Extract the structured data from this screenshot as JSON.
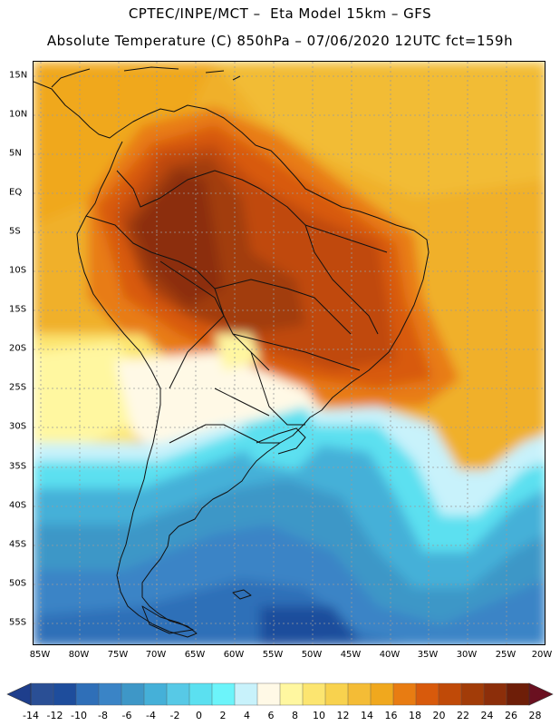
{
  "header": {
    "line1": "CPTEC/INPE/MCT –  Eta Model 15km – GFS",
    "line2": "Absolute Temperature (C) 850hPa – 07/06/2020 12UTC fct=159h"
  },
  "map": {
    "lat_labels": [
      "15N",
      "10N",
      "5N",
      "EQ",
      "5S",
      "10S",
      "15S",
      "20S",
      "25S",
      "30S",
      "35S",
      "40S",
      "45S",
      "50S",
      "55S"
    ],
    "lon_labels": [
      "85W",
      "80W",
      "75W",
      "70W",
      "65W",
      "60W",
      "55W",
      "50W",
      "45W",
      "40W",
      "35W",
      "30W",
      "25W",
      "20W"
    ],
    "lat_range": [
      17,
      -57
    ],
    "lon_range": [
      -85.3,
      -19.2
    ],
    "gridlines": "dashed"
  },
  "legend": {
    "labels": [
      "-14",
      "-12",
      "-10",
      "-8",
      "-6",
      "-4",
      "-2",
      "0",
      "2",
      "4",
      "6",
      "8",
      "10",
      "12",
      "14",
      "16",
      "18",
      "20",
      "22",
      "24",
      "26",
      "28"
    ],
    "colors": [
      "#2a4f95",
      "#1e4d9c",
      "#2f6fb8",
      "#3a84c6",
      "#3e97c7",
      "#45b0d8",
      "#57c9e6",
      "#5be0f0",
      "#6cf4fa",
      "#c8f2fb",
      "#fff9e6",
      "#fff7a0",
      "#fce570",
      "#f8d24e",
      "#f4bc36",
      "#f0a81e",
      "#e87c12",
      "#d85a0c",
      "#c04a08",
      "#a23c08",
      "#8c2e0a",
      "#6e1e08"
    ],
    "left_arrow_color": "#1e3e8c",
    "right_arrow_color": "#6a1020"
  }
}
